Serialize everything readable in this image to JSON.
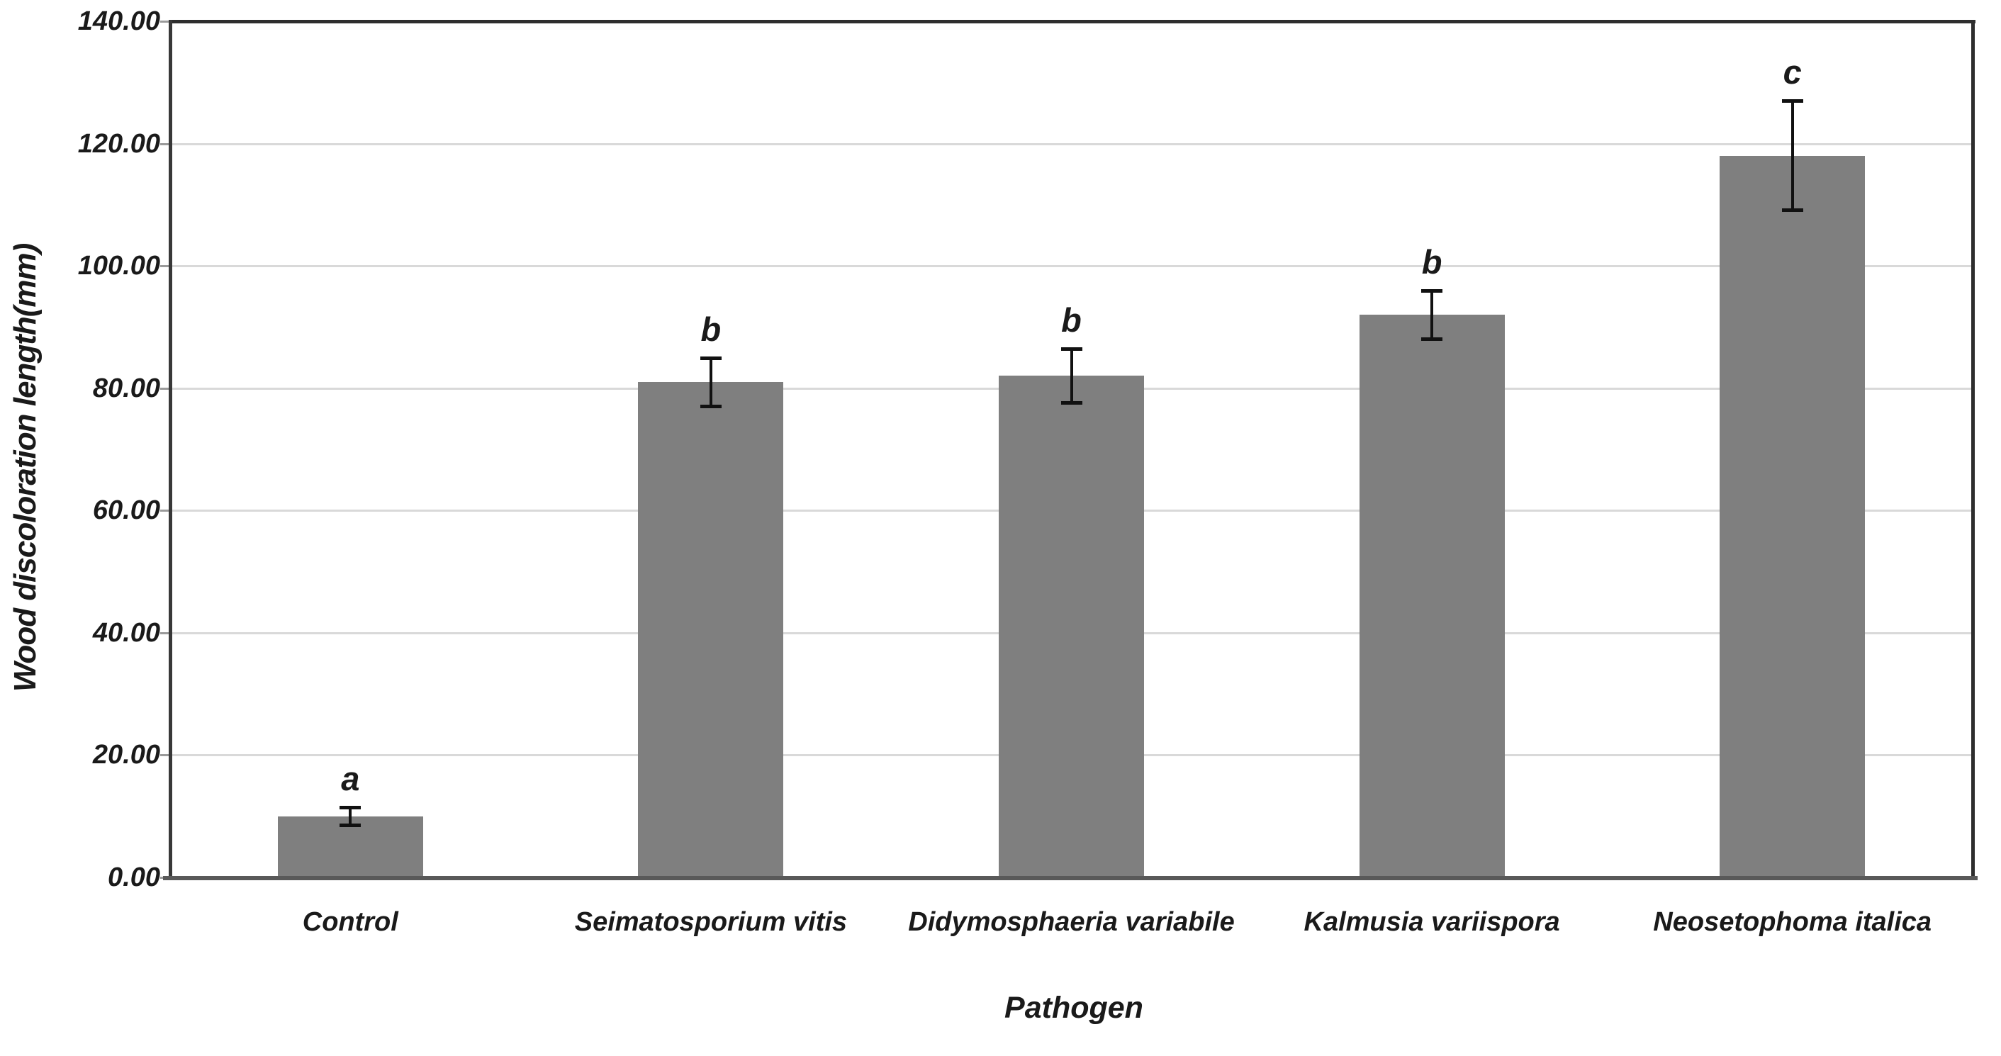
{
  "chart_data": {
    "type": "bar",
    "title": "",
    "xlabel": "Pathogen",
    "ylabel": "Wood discoloration length(mm)",
    "ylim": [
      0,
      140
    ],
    "ytick_step": 20,
    "ytick_labels": [
      "0.00",
      "20.00",
      "40.00",
      "60.00",
      "80.00",
      "100.00",
      "120.00",
      "140.00"
    ],
    "grid": true,
    "legend": "none",
    "categories": [
      "Control",
      "Seimatosporium vitis",
      "Didymosphaeria variabile",
      "Kalmusia variispora",
      "Neosetophoma italica"
    ],
    "values": [
      10,
      81,
      82,
      92,
      118
    ],
    "error_bars": [
      1.5,
      4,
      4.5,
      4,
      9
    ],
    "significance_letters": [
      "a",
      "b",
      "b",
      "b",
      "c"
    ],
    "bar_color": "#7f7f7f",
    "gridline_color": "#d9d9d9",
    "axis_line_color": "#595959",
    "plot_border_color": "#2e2e2e",
    "error_bar_color": "#111111",
    "text_color": "#1a1a1a"
  }
}
